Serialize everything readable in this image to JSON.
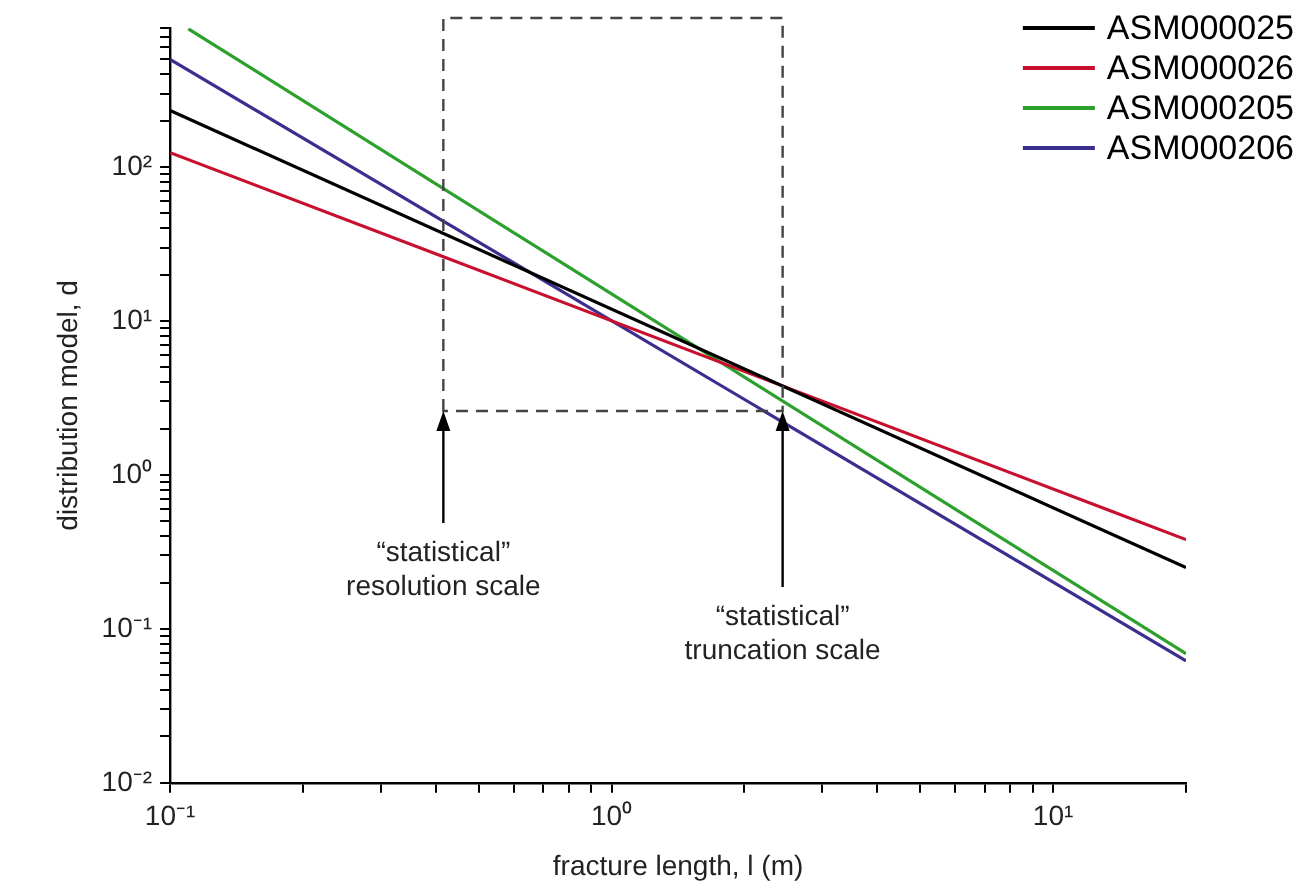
{
  "chart_data": {
    "type": "line",
    "xlabel": "fracture length, l (m)",
    "ylabel": "distribution model, d",
    "log": "xy",
    "grid": false,
    "legend": "top right",
    "marker": "none",
    "line_style": "solid",
    "xlim": [
      0.1,
      20
    ],
    "ylim": [
      0.01,
      800
    ],
    "xticks": [
      {
        "value": 0.1,
        "label": "10⁻¹"
      },
      {
        "value": 0.2,
        "label": null
      },
      {
        "value": 0.3,
        "label": null
      },
      {
        "value": 0.4,
        "label": null
      },
      {
        "value": 0.5,
        "label": null
      },
      {
        "value": 0.6,
        "label": null
      },
      {
        "value": 0.7,
        "label": null
      },
      {
        "value": 0.8,
        "label": null
      },
      {
        "value": 0.9,
        "label": null
      },
      {
        "value": 1,
        "label": "10⁰"
      },
      {
        "value": 2,
        "label": null
      },
      {
        "value": 3,
        "label": null
      },
      {
        "value": 4,
        "label": null
      },
      {
        "value": 5,
        "label": null
      },
      {
        "value": 6,
        "label": null
      },
      {
        "value": 7,
        "label": null
      },
      {
        "value": 8,
        "label": null
      },
      {
        "value": 9,
        "label": null
      },
      {
        "value": 10,
        "label": "10¹"
      },
      {
        "value": 20,
        "label": null
      }
    ],
    "yticks": [
      {
        "value": 0.01,
        "label": "10⁻²"
      },
      {
        "value": 0.02,
        "label": null
      },
      {
        "value": 0.03,
        "label": null
      },
      {
        "value": 0.04,
        "label": null
      },
      {
        "value": 0.05,
        "label": null
      },
      {
        "value": 0.06,
        "label": null
      },
      {
        "value": 0.07,
        "label": null
      },
      {
        "value": 0.08,
        "label": null
      },
      {
        "value": 0.09,
        "label": null
      },
      {
        "value": 0.1,
        "label": "10⁻¹"
      },
      {
        "value": 0.2,
        "label": null
      },
      {
        "value": 0.3,
        "label": null
      },
      {
        "value": 0.4,
        "label": null
      },
      {
        "value": 0.5,
        "label": null
      },
      {
        "value": 0.6,
        "label": null
      },
      {
        "value": 0.7,
        "label": null
      },
      {
        "value": 0.8,
        "label": null
      },
      {
        "value": 0.9,
        "label": null
      },
      {
        "value": 1,
        "label": "10⁰"
      },
      {
        "value": 2,
        "label": null
      },
      {
        "value": 3,
        "label": null
      },
      {
        "value": 4,
        "label": null
      },
      {
        "value": 5,
        "label": null
      },
      {
        "value": 6,
        "label": null
      },
      {
        "value": 7,
        "label": null
      },
      {
        "value": 8,
        "label": null
      },
      {
        "value": 9,
        "label": null
      },
      {
        "value": 10,
        "label": "10¹"
      },
      {
        "value": 20,
        "label": null
      },
      {
        "value": 30,
        "label": null
      },
      {
        "value": 40,
        "label": null
      },
      {
        "value": 50,
        "label": null
      },
      {
        "value": 60,
        "label": null
      },
      {
        "value": 70,
        "label": null
      },
      {
        "value": 80,
        "label": null
      },
      {
        "value": 90,
        "label": null
      },
      {
        "value": 100,
        "label": "10²"
      },
      {
        "value": 200,
        "label": null
      },
      {
        "value": 300,
        "label": null
      },
      {
        "value": 400,
        "label": null
      },
      {
        "value": 500,
        "label": null
      },
      {
        "value": 600,
        "label": null
      },
      {
        "value": 700,
        "label": null
      },
      {
        "value": 800,
        "label": null
      }
    ],
    "series": [
      {
        "name": "ASM000025",
        "color": "#000000",
        "x": [
          0.1,
          20
        ],
        "values": [
          233,
          0.25
        ]
      },
      {
        "name": "ASM000026",
        "color": "#c8102e",
        "x": [
          0.1,
          20
        ],
        "values": [
          124,
          0.38
        ]
      },
      {
        "name": "ASM000205",
        "color": "#2ca02c",
        "x": [
          0.11,
          20
        ],
        "values": [
          790,
          0.069
        ]
      },
      {
        "name": "ASM000206",
        "color": "#3a2f8f",
        "x": [
          0.1,
          20
        ],
        "values": [
          500,
          0.062
        ]
      }
    ],
    "annotations": [
      "“statistical”\nresolution scale",
      {
        "text": "“statistical”\ntruncation scale",
        "x": 2.44,
        "y": 2.6
      }
    ]
  }
}
